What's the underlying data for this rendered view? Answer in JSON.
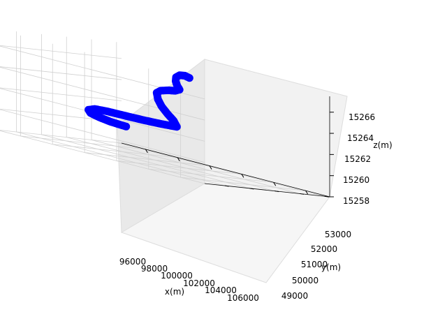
{
  "chart_data": {
    "type": "scatter",
    "projection": "3d",
    "xlabel": "x(m)",
    "ylabel": "y(m)",
    "zlabel": "z(m)",
    "x_ticks": [
      "96000",
      "98000",
      "100000",
      "102000",
      "104000",
      "106000"
    ],
    "y_ticks": [
      "49000",
      "50000",
      "51000",
      "52000",
      "53000"
    ],
    "z_ticks": [
      "15258",
      "15260",
      "15262",
      "15264",
      "15266"
    ],
    "xlim": [
      94500,
      107500
    ],
    "ylim": [
      48800,
      53800
    ],
    "zlim": [
      15258,
      15267.5
    ],
    "grid": true,
    "colors": {
      "series": "#0000ff",
      "pane": "#f2f2f2",
      "grid": "#d0d0d0"
    },
    "series": [
      {
        "points": [
          [
            105800,
            49700,
            15260.0
          ],
          [
            105400,
            50600,
            15260.4
          ],
          [
            105000,
            51300,
            15260.8
          ],
          [
            104600,
            51900,
            15261.2
          ],
          [
            104100,
            52300,
            15261.6
          ],
          [
            103400,
            52500,
            15261.9
          ],
          [
            102500,
            52550,
            15262.0
          ],
          [
            101500,
            52500,
            15262.0
          ],
          [
            100500,
            52400,
            15262.0
          ],
          [
            99700,
            52200,
            15262.0
          ],
          [
            99200,
            51900,
            15262.0
          ],
          [
            99400,
            51900,
            15262.5
          ],
          [
            99700,
            51950,
            15263.0
          ],
          [
            100000,
            52000,
            15263.6
          ],
          [
            100150,
            52050,
            15264.2
          ],
          [
            100150,
            52100,
            15264.8
          ],
          [
            99900,
            52100,
            15265.1
          ],
          [
            99500,
            52050,
            15265.3
          ],
          [
            99150,
            52000,
            15265.4
          ],
          [
            98950,
            51950,
            15265.6
          ],
          [
            99100,
            51950,
            15265.9
          ],
          [
            99200,
            51950,
            15266.3
          ],
          [
            99100,
            52000,
            15266.7
          ],
          [
            98800,
            52050,
            15267.0
          ],
          [
            98400,
            52100,
            15267.1
          ],
          [
            98100,
            52100,
            15267.0
          ]
        ]
      }
    ]
  }
}
